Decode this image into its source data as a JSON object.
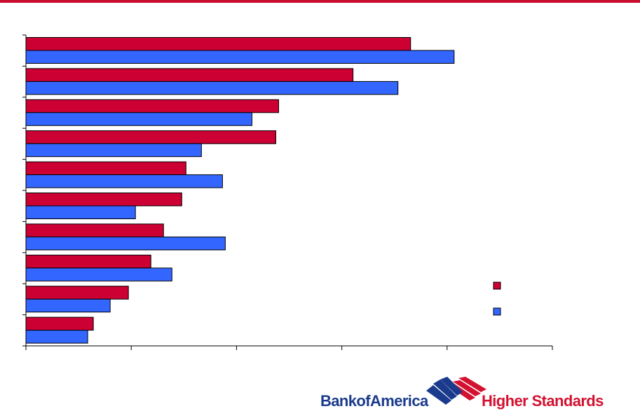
{
  "colors": {
    "top_rule": "#c8102e",
    "series_1": "#cc0033",
    "series_2": "#3366ff",
    "axis": "#000000",
    "brand_blue": "#1a3a8c",
    "brand_red": "#d31130"
  },
  "chart_data": {
    "type": "bar",
    "orientation": "horizontal",
    "categories": [
      "",
      "",
      "",
      "",
      "",
      "",
      "",
      "",
      "",
      ""
    ],
    "series": [
      {
        "values": [
          27.4,
          23.3,
          18.0,
          17.8,
          11.4,
          11.1,
          9.8,
          8.9,
          7.3,
          4.8
        ]
      },
      {
        "values": [
          30.5,
          26.5,
          16.1,
          12.5,
          14.0,
          7.8,
          14.2,
          10.4,
          6.0,
          4.4
        ]
      }
    ],
    "xlim": [
      0,
      37.5
    ],
    "x_ticks": 6,
    "legend_position": "right",
    "grid": false
  },
  "brand": {
    "name": "BankofAmerica",
    "tagline": "Higher Standards",
    "logo_icon": "flag-icon"
  }
}
